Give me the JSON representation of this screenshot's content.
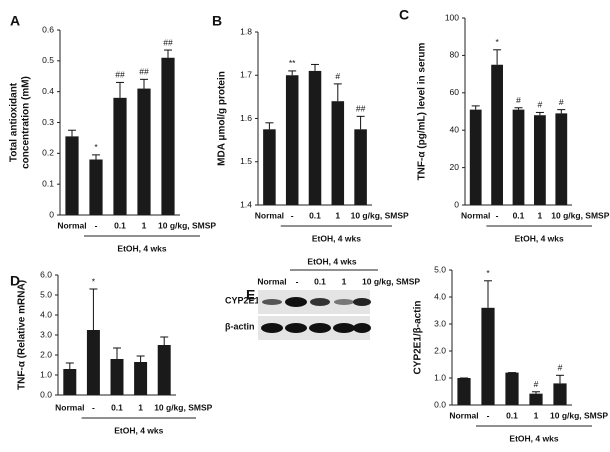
{
  "chart_data": [
    {
      "type": "bar",
      "panel": "A",
      "y_label": [
        "Total antioxidant",
        "concentration (mM)"
      ],
      "categories": [
        "Normal",
        "-",
        "0.1",
        "1",
        "10 g/kg, SMSP"
      ],
      "group_label": "EtOH, 4 wks",
      "values": [
        0.255,
        0.18,
        0.38,
        0.41,
        0.51
      ],
      "errors": [
        0.02,
        0.015,
        0.05,
        0.03,
        0.025
      ],
      "annotations": [
        null,
        "*",
        "##",
        "##",
        "##"
      ],
      "color": "#1a1a1a",
      "ylim": [
        0,
        0.6
      ],
      "yticks": [
        0,
        0.1,
        0.2,
        0.3,
        0.4,
        0.5,
        0.6
      ]
    },
    {
      "type": "bar",
      "panel": "B",
      "y_label": [
        "MDA μmol/g protein"
      ],
      "categories": [
        "Normal",
        "-",
        "0.1",
        "1",
        "10 g/kg, SMSP"
      ],
      "group_label": "EtOH, 4 wks",
      "values": [
        1.575,
        1.7,
        1.71,
        1.64,
        1.575
      ],
      "errors": [
        0.015,
        0.01,
        0.015,
        0.04,
        0.03
      ],
      "annotations": [
        null,
        "**",
        null,
        "#",
        "##"
      ],
      "color": "#1a1a1a",
      "ylim": [
        1.4,
        1.8
      ],
      "yticks": [
        1.4,
        1.5,
        1.6,
        1.7,
        1.8
      ]
    },
    {
      "type": "bar",
      "panel": "C",
      "y_label": [
        "TNF-α (pg/mL) level in serum"
      ],
      "categories": [
        "Normal",
        "-",
        "0.1",
        "1",
        "10 g/kg, SMSP"
      ],
      "group_label": "EtOH, 4 wks",
      "values": [
        51,
        75,
        51,
        48,
        49
      ],
      "errors": [
        2,
        8,
        1,
        1.5,
        2
      ],
      "annotations": [
        null,
        "*",
        "#",
        "#",
        "#"
      ],
      "color": "#1a1a1a",
      "ylim": [
        0,
        100
      ],
      "yticks": [
        0,
        20,
        40,
        60,
        80,
        100
      ]
    },
    {
      "type": "bar",
      "panel": "D",
      "y_label": [
        "TNF-α (Relative mRNA)"
      ],
      "categories": [
        "Normal",
        "-",
        "0.1",
        "1",
        "10 g/kg, SMSP"
      ],
      "group_label": "EtOH, 4 wks",
      "values": [
        1.3,
        3.25,
        1.8,
        1.65,
        2.5
      ],
      "errors": [
        0.3,
        2.05,
        0.55,
        0.3,
        0.4
      ],
      "annotations": [
        null,
        "*",
        null,
        null,
        null
      ],
      "color": "#1a1a1a",
      "ylim": [
        0,
        6
      ],
      "yticks": [
        {
          "value": 0,
          "label": "0.0"
        },
        {
          "value": 1,
          "label": "1.0"
        },
        {
          "value": 2,
          "label": "2.0"
        },
        {
          "value": 3,
          "label": "3.0"
        },
        {
          "value": 4,
          "label": "4.0"
        },
        {
          "value": 5,
          "label": "5.0"
        },
        {
          "value": 6,
          "label": "6.0"
        }
      ]
    },
    {
      "type": "bar",
      "y_label": [
        "CYP2E1/β-actin"
      ],
      "categories": [
        "Normal",
        "-",
        "0.1",
        "1",
        "10 g/kg, SMSP"
      ],
      "group_label": "EtOH, 4 wks",
      "values": [
        1.0,
        3.6,
        1.2,
        0.42,
        0.8
      ],
      "errors": [
        0,
        1.0,
        0,
        0.07,
        0.3
      ],
      "annotations": [
        null,
        "*",
        null,
        "#",
        "#"
      ],
      "color": "#1a1a1a",
      "ylim": [
        0,
        5
      ],
      "yticks": [
        {
          "value": 0,
          "label": "0.0"
        },
        {
          "value": 1,
          "label": "1.0"
        },
        {
          "value": 2,
          "label": "2.0"
        },
        {
          "value": 3,
          "label": "3.0"
        },
        {
          "value": 4,
          "label": "4.0"
        },
        {
          "value": 5,
          "label": "5.0"
        }
      ]
    }
  ],
  "blot": {
    "panel": "E",
    "group_label": "EtOH, 4 wks",
    "columns": [
      "Normal",
      "-",
      "0.1",
      "1",
      "10 g/kg, SMSP"
    ],
    "rows": [
      "CYP2E1",
      "β-actin"
    ]
  }
}
